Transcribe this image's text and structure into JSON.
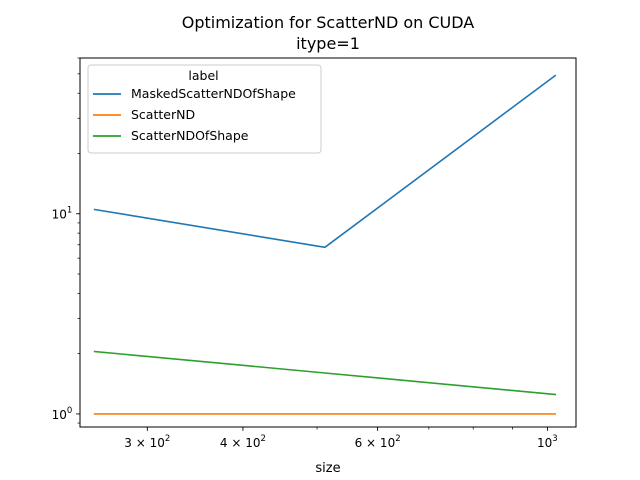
{
  "chart_data": {
    "type": "line",
    "title": "Optimization for ScatterND on CUDA",
    "subtitle": "itype=1",
    "xlabel": "size",
    "ylabel": "",
    "xscale": "log",
    "yscale": "log",
    "xlim": [
      245,
      1090
    ],
    "ylim": [
      0.86,
      60
    ],
    "x": [
      256,
      512,
      1024
    ],
    "x_ticks": [
      {
        "value": 300,
        "base": "3",
        "exp": "2",
        "text": "3 × 10^2"
      },
      {
        "value": 400,
        "base": "4",
        "exp": "2",
        "text": "4 × 10^2"
      },
      {
        "value": 600,
        "base": "6",
        "exp": "2",
        "text": "6 × 10^2"
      },
      {
        "value": 1000,
        "base": "10",
        "exp": "3",
        "text": "10^3"
      }
    ],
    "y_ticks": [
      {
        "value": 1,
        "base": "10",
        "exp": "0",
        "text": "10^0"
      },
      {
        "value": 10,
        "base": "10",
        "exp": "1",
        "text": "10^1"
      }
    ],
    "legend": {
      "title": "label",
      "placement": "upper-left"
    },
    "series": [
      {
        "name": "MaskedScatterNDOfShape",
        "color": "#1f77b4",
        "values": [
          10.5,
          6.8,
          49.0
        ]
      },
      {
        "name": "ScatterND",
        "color": "#ff7f0e",
        "values": [
          1.0,
          1.0,
          1.0
        ]
      },
      {
        "name": "ScatterNDOfShape",
        "color": "#2ca02c",
        "values": [
          2.05,
          1.6,
          1.25
        ]
      }
    ]
  }
}
